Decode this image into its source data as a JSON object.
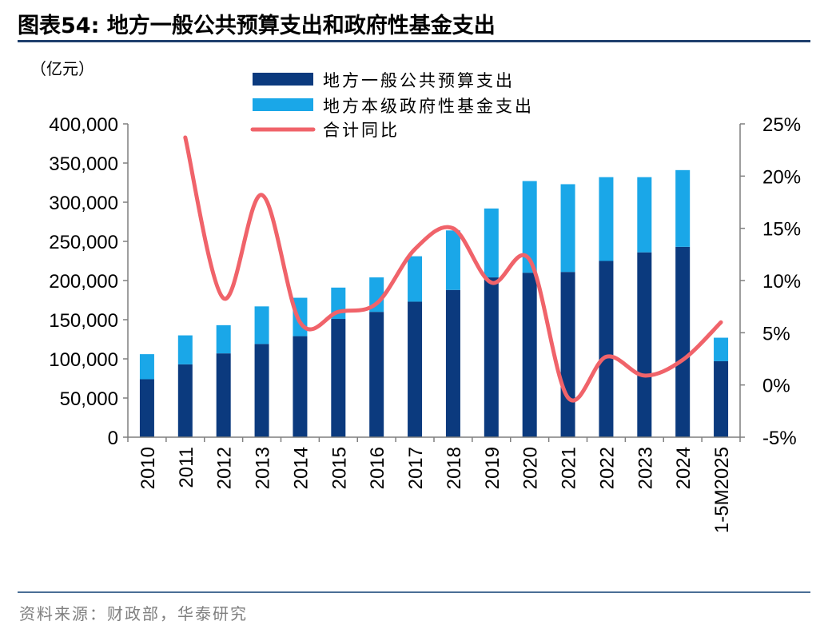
{
  "header": {
    "title": "图表54:  地方一般公共预算支出和政府性基金支出"
  },
  "footer": {
    "source": "资料来源：财政部，华泰研究"
  },
  "colors": {
    "general_budget": "#0b3a7e",
    "fund": "#1aa7e8",
    "yoy": "#f0636a",
    "axis": "#7f7f7f"
  },
  "chart_data": {
    "type": "bar",
    "stacked": true,
    "unit_label": "（亿元）",
    "categories": [
      "2010",
      "2011",
      "2012",
      "2013",
      "2014",
      "2015",
      "2016",
      "2017",
      "2018",
      "2019",
      "2020",
      "2021",
      "2022",
      "2023",
      "2024",
      "1-5M2025"
    ],
    "series": [
      {
        "name": "地方一般公共预算支出",
        "axis": "left",
        "values": [
          74000,
          93000,
          107000,
          119000,
          129000,
          151000,
          160000,
          173000,
          188000,
          204000,
          210000,
          211000,
          225000,
          236000,
          243000,
          97000
        ]
      },
      {
        "name": "地方本级政府性基金支出",
        "axis": "left",
        "values": [
          32000,
          37000,
          36000,
          48000,
          49000,
          40000,
          44000,
          58000,
          76000,
          88000,
          117000,
          112000,
          107000,
          96000,
          98000,
          30000
        ]
      },
      {
        "name": "合计同比",
        "type": "line",
        "axis": "right",
        "values": [
          null,
          23.7,
          8.3,
          18.2,
          6.0,
          7.0,
          7.8,
          13.0,
          15.0,
          9.8,
          12.0,
          -1.2,
          2.7,
          0.9,
          2.4,
          6.0
        ]
      }
    ],
    "left_axis": {
      "min": 0,
      "max": 400000,
      "step": 50000,
      "tick_labels": [
        "0",
        "50,000",
        "100,000",
        "150,000",
        "200,000",
        "250,000",
        "300,000",
        "350,000",
        "400,000"
      ]
    },
    "right_axis": {
      "min": -5,
      "max": 25,
      "step": 5,
      "tick_labels": [
        "-5%",
        "0%",
        "5%",
        "10%",
        "15%",
        "20%",
        "25%"
      ]
    },
    "legend_position": "top-center",
    "grid": false
  }
}
